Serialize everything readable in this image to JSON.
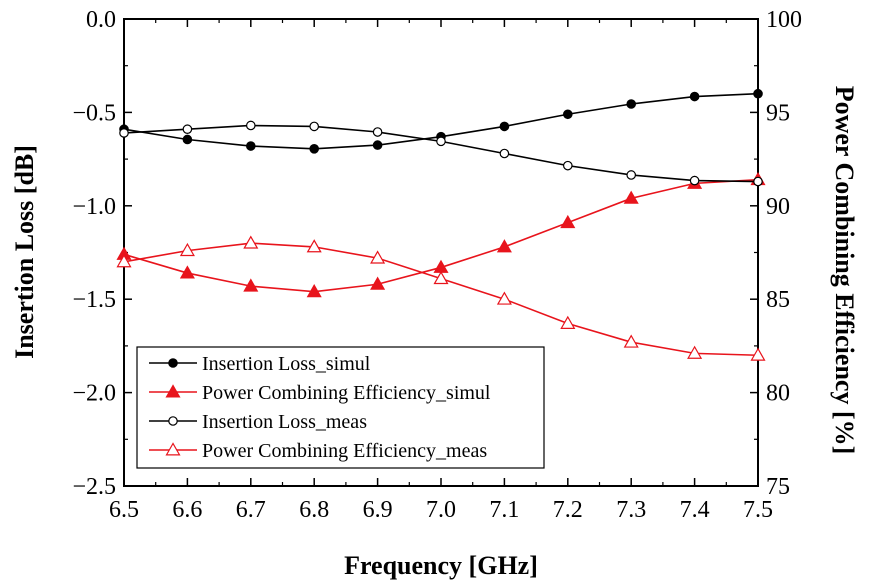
{
  "chart_data": {
    "type": "line",
    "xlabel": "Frequency [GHz]",
    "ylabel_left": "Insertion Loss [dB]",
    "ylabel_right": "Power Combining Efficiency [%]",
    "x": [
      6.5,
      6.6,
      6.7,
      6.8,
      6.9,
      7.0,
      7.1,
      7.2,
      7.3,
      7.4,
      7.5
    ],
    "x_ticks": [
      "6.5",
      "6.6",
      "6.7",
      "6.8",
      "6.9",
      "7.0",
      "7.1",
      "7.2",
      "7.3",
      "7.4",
      "7.5"
    ],
    "xlim": [
      6.5,
      7.5
    ],
    "ylim_left": [
      -2.5,
      0.0
    ],
    "y_ticks_left": [
      "0.0",
      "-0.5",
      "-1.0",
      "-1.5",
      "-2.0",
      "-2.5"
    ],
    "ylim_right": [
      75,
      100
    ],
    "y_ticks_right": [
      "100",
      "95",
      "90",
      "85",
      "80",
      "75"
    ],
    "grid": false,
    "legend_position": "bottom-left",
    "series": [
      {
        "name": "Insertion Loss_simul",
        "axis": "left",
        "color": "#000000",
        "marker": "filled-circle",
        "values": [
          -0.59,
          -0.645,
          -0.68,
          -0.695,
          -0.675,
          -0.63,
          -0.575,
          -0.51,
          -0.455,
          -0.415,
          -0.4
        ]
      },
      {
        "name": "Power Combining Efficiency_simul",
        "axis": "right",
        "color": "#e8141c",
        "marker": "filled-triangle",
        "values": [
          87.4,
          86.4,
          85.7,
          85.4,
          85.8,
          86.7,
          87.8,
          89.1,
          90.4,
          91.2,
          91.4
        ]
      },
      {
        "name": "Insertion Loss_meas",
        "axis": "left",
        "color": "#000000",
        "marker": "open-circle",
        "values": [
          -0.61,
          -0.59,
          -0.57,
          -0.575,
          -0.605,
          -0.655,
          -0.72,
          -0.785,
          -0.835,
          -0.865,
          -0.87
        ]
      },
      {
        "name": "Power Combining Efficiency_meas",
        "axis": "right",
        "color": "#e8141c",
        "marker": "open-triangle",
        "values": [
          87.0,
          87.6,
          88.0,
          87.8,
          87.2,
          86.1,
          85.0,
          83.7,
          82.7,
          82.1,
          82.0
        ]
      }
    ]
  }
}
